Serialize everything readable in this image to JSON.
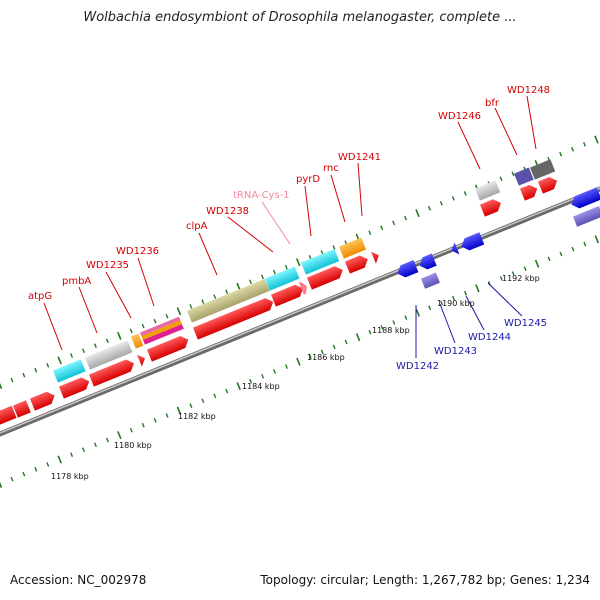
{
  "title": "Wolbachia endosymbiont of Drosophila melanogaster, complete ...",
  "accession": "Accession: NC_002978",
  "summary": "Topology: circular; Length: 1,267,782 bp; Genes: 1,234",
  "colors": {
    "forward_label": "#d40000",
    "reverse_label": "#1a1aa8",
    "trna_label": "#f08aa0",
    "backbone": "#888888",
    "tick": "#227722"
  },
  "ticks": [
    "1178 kbp",
    "1180 kbp",
    "1182 kbp",
    "1184 kbp",
    "1186 kbp",
    "1188 kbp",
    "1190 kbp",
    "1192 kbp"
  ],
  "forward_labels": [
    "atpG",
    "pmbA",
    "WD1235",
    "WD1236",
    "clpA",
    "WD1238",
    "tRNA-Cys-1",
    "pyrD",
    "rnc",
    "WD1241",
    "WD1246",
    "bfr",
    "WD1248"
  ],
  "reverse_labels": [
    "WD1242",
    "WD1243",
    "WD1244",
    "WD1245"
  ]
}
